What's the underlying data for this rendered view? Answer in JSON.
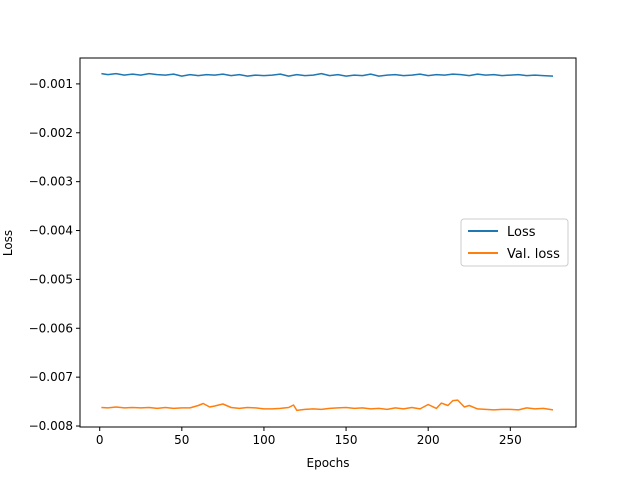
{
  "chart_data": {
    "type": "line",
    "title": "",
    "xlabel": "Epochs",
    "ylabel": "Loss",
    "xlim": [
      -12,
      290
    ],
    "ylim": [
      -0.00802,
      -0.00047
    ],
    "xticks": [
      0,
      50,
      100,
      150,
      200,
      250
    ],
    "xtick_labels": [
      "0",
      "50",
      "100",
      "150",
      "200",
      "250"
    ],
    "yticks": [
      -0.001,
      -0.002,
      -0.003,
      -0.004,
      -0.005,
      -0.006,
      -0.007,
      -0.008
    ],
    "ytick_labels": [
      "−0.001",
      "−0.002",
      "−0.003",
      "−0.004",
      "−0.005",
      "−0.006",
      "−0.007",
      "−0.008"
    ],
    "grid": false,
    "legend_position": "center-right",
    "series": [
      {
        "name": "Loss",
        "color": "#1f77b4",
        "x": [
          1,
          5,
          10,
          15,
          20,
          25,
          30,
          35,
          40,
          45,
          50,
          55,
          60,
          65,
          70,
          75,
          80,
          85,
          90,
          95,
          100,
          105,
          110,
          115,
          120,
          125,
          130,
          135,
          140,
          145,
          150,
          155,
          160,
          165,
          170,
          175,
          180,
          185,
          190,
          195,
          200,
          205,
          210,
          215,
          220,
          225,
          230,
          235,
          240,
          245,
          250,
          255,
          260,
          265,
          270,
          276
        ],
        "y": [
          -0.00079,
          -0.00081,
          -0.00079,
          -0.00082,
          -0.0008,
          -0.00082,
          -0.00079,
          -0.00081,
          -0.00082,
          -0.0008,
          -0.00084,
          -0.00081,
          -0.00083,
          -0.00081,
          -0.00082,
          -0.0008,
          -0.00083,
          -0.00081,
          -0.00084,
          -0.00082,
          -0.00083,
          -0.00082,
          -0.0008,
          -0.00084,
          -0.00081,
          -0.00083,
          -0.00082,
          -0.00079,
          -0.00083,
          -0.00081,
          -0.00084,
          -0.00082,
          -0.00083,
          -0.0008,
          -0.00084,
          -0.00082,
          -0.00081,
          -0.00083,
          -0.00082,
          -0.0008,
          -0.00083,
          -0.00081,
          -0.00082,
          -0.0008,
          -0.00081,
          -0.00083,
          -0.0008,
          -0.00082,
          -0.00081,
          -0.00083,
          -0.00082,
          -0.00081,
          -0.00083,
          -0.00082,
          -0.00083,
          -0.00084
        ]
      },
      {
        "name": "Val. loss",
        "color": "#ff7f0e",
        "x": [
          1,
          5,
          10,
          15,
          20,
          25,
          30,
          35,
          40,
          45,
          50,
          55,
          60,
          63,
          67,
          70,
          75,
          80,
          85,
          90,
          95,
          100,
          105,
          110,
          115,
          118,
          120,
          125,
          130,
          135,
          140,
          145,
          150,
          155,
          160,
          165,
          170,
          175,
          180,
          185,
          190,
          195,
          200,
          205,
          208,
          212,
          215,
          218,
          222,
          225,
          230,
          235,
          240,
          245,
          250,
          255,
          260,
          265,
          270,
          276
        ],
        "y": [
          -0.00762,
          -0.00763,
          -0.00761,
          -0.00763,
          -0.00762,
          -0.00763,
          -0.00762,
          -0.00764,
          -0.00762,
          -0.00764,
          -0.00763,
          -0.00763,
          -0.00758,
          -0.00754,
          -0.00761,
          -0.00759,
          -0.00755,
          -0.00762,
          -0.00764,
          -0.00762,
          -0.00763,
          -0.00765,
          -0.00765,
          -0.00764,
          -0.00762,
          -0.00757,
          -0.00768,
          -0.00766,
          -0.00765,
          -0.00766,
          -0.00764,
          -0.00763,
          -0.00762,
          -0.00764,
          -0.00763,
          -0.00765,
          -0.00764,
          -0.00766,
          -0.00763,
          -0.00765,
          -0.00762,
          -0.00765,
          -0.00756,
          -0.00764,
          -0.00753,
          -0.00758,
          -0.00748,
          -0.00747,
          -0.00761,
          -0.00758,
          -0.00765,
          -0.00766,
          -0.00767,
          -0.00766,
          -0.00766,
          -0.00767,
          -0.00763,
          -0.00765,
          -0.00764,
          -0.00767
        ]
      }
    ]
  }
}
